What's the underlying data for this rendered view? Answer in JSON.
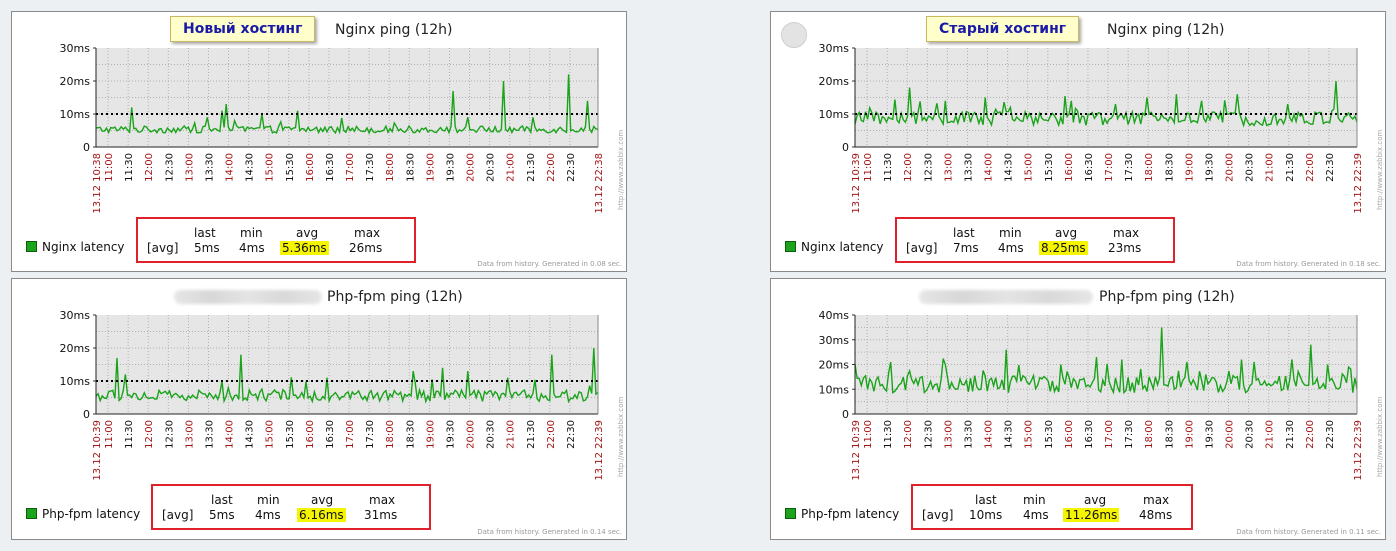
{
  "chart_data": [
    {
      "type": "line",
      "title": "Nginx ping (12h)",
      "badge": "Новый хостинг",
      "has_blurred_host": false,
      "ytick_labels": [
        "0",
        "10ms",
        "20ms",
        "30ms"
      ],
      "ylim": [
        0,
        30
      ],
      "y_unit": "ms",
      "threshold": 10,
      "x_start_label": "13.12 10:38",
      "x_end_label": "13.12 22:38",
      "xticks": [
        "11:00",
        "11:30",
        "12:00",
        "12:30",
        "13:00",
        "13:30",
        "14:00",
        "14:30",
        "15:00",
        "15:30",
        "16:00",
        "16:30",
        "17:00",
        "17:30",
        "18:00",
        "18:30",
        "19:00",
        "19:30",
        "20:00",
        "20:30",
        "21:00",
        "21:30",
        "22:00",
        "22:30"
      ],
      "series": [
        {
          "name": "Nginx latency",
          "color": "#1ba31b",
          "base": 5,
          "noise": 1.5,
          "spikes": [
            [
              0.07,
              12
            ],
            [
              0.22,
              9
            ],
            [
              0.25,
              11
            ],
            [
              0.26,
              13
            ],
            [
              0.33,
              10
            ],
            [
              0.4,
              11
            ],
            [
              0.71,
              17
            ],
            [
              0.74,
              9
            ],
            [
              0.81,
              20
            ],
            [
              0.87,
              9
            ],
            [
              0.94,
              22
            ],
            [
              0.98,
              14
            ]
          ],
          "stats": {
            "func": "[avg]",
            "last": "5ms",
            "min": "4ms",
            "avg": "5.36ms",
            "max": "26ms"
          }
        }
      ],
      "footnote": "Data from history. Generated in 0.08 sec.",
      "watermark": "http://www.zabbix.com"
    },
    {
      "type": "line",
      "title": "Nginx ping (12h)",
      "badge": "Старый хостинг",
      "has_blurred_host": false,
      "ytick_labels": [
        "0",
        "10ms",
        "20ms",
        "30ms"
      ],
      "ylim": [
        0,
        30
      ],
      "y_unit": "ms",
      "threshold": 10,
      "x_start_label": "13.12 10:39",
      "x_end_label": "13.12 22:39",
      "xticks": [
        "11:00",
        "11:30",
        "12:00",
        "12:30",
        "13:00",
        "13:30",
        "14:00",
        "14:30",
        "15:00",
        "15:30",
        "16:00",
        "16:30",
        "17:00",
        "17:30",
        "18:00",
        "18:30",
        "19:00",
        "19:30",
        "20:00",
        "20:30",
        "21:00",
        "21:30",
        "22:00",
        "22:30"
      ],
      "series": [
        {
          "name": "Nginx latency",
          "color": "#1ba31b",
          "base": 8,
          "noise": 3,
          "spikes": [
            [
              0.11,
              18
            ],
            [
              0.18,
              14
            ],
            [
              0.26,
              15
            ],
            [
              0.31,
              12
            ],
            [
              0.43,
              14
            ],
            [
              0.52,
              13
            ],
            [
              0.58,
              15
            ],
            [
              0.64,
              16
            ],
            [
              0.69,
              14
            ],
            [
              0.76,
              16
            ],
            [
              0.86,
              13
            ],
            [
              0.96,
              20
            ]
          ],
          "stats": {
            "func": "[avg]",
            "last": "7ms",
            "min": "4ms",
            "avg": "8.25ms",
            "max": "23ms"
          }
        }
      ],
      "footnote": "Data from history. Generated in 0.18 sec.",
      "watermark": "http://www.zabbix.com"
    },
    {
      "type": "line",
      "title": "Php-fpm ping (12h)",
      "badge": "",
      "has_blurred_host": true,
      "ytick_labels": [
        "0",
        "10ms",
        "20ms",
        "30ms"
      ],
      "ylim": [
        0,
        30
      ],
      "y_unit": "ms",
      "threshold": 10,
      "x_start_label": "13.12 10:39",
      "x_end_label": "13.12 22:39",
      "xticks": [
        "11:00",
        "11:30",
        "12:00",
        "12:30",
        "13:00",
        "13:30",
        "14:00",
        "14:30",
        "15:00",
        "15:30",
        "16:00",
        "16:30",
        "17:00",
        "17:30",
        "18:00",
        "18:30",
        "19:00",
        "19:30",
        "20:00",
        "20:30",
        "21:00",
        "21:30",
        "22:00",
        "22:30"
      ],
      "series": [
        {
          "name": "Php-fpm latency",
          "color": "#1ba31b",
          "base": 5,
          "noise": 2.5,
          "spikes": [
            [
              0.04,
              17
            ],
            [
              0.06,
              12
            ],
            [
              0.25,
              10
            ],
            [
              0.29,
              18
            ],
            [
              0.46,
              11
            ],
            [
              0.63,
              13
            ],
            [
              0.69,
              14
            ],
            [
              0.74,
              13
            ],
            [
              0.82,
              11
            ],
            [
              0.91,
              18
            ],
            [
              0.99,
              20
            ]
          ],
          "stats": {
            "func": "[avg]",
            "last": "5ms",
            "min": "4ms",
            "avg": "6.16ms",
            "max": "31ms"
          }
        }
      ],
      "footnote": "Data from history. Generated in 0.14 sec.",
      "watermark": "http://www.zabbix.com"
    },
    {
      "type": "line",
      "title": "Php-fpm ping (12h)",
      "badge": "",
      "has_blurred_host": true,
      "ytick_labels": [
        "0",
        "10ms",
        "20ms",
        "30ms",
        "40ms"
      ],
      "ylim": [
        0,
        40
      ],
      "y_unit": "ms",
      "threshold": null,
      "x_start_label": "13.12 10:39",
      "x_end_label": "13.12 22:39",
      "xticks": [
        "11:00",
        "11:30",
        "12:00",
        "12:30",
        "13:00",
        "13:30",
        "14:00",
        "14:30",
        "15:00",
        "15:30",
        "16:00",
        "16:30",
        "17:00",
        "17:30",
        "18:00",
        "18:30",
        "19:00",
        "19:30",
        "20:00",
        "20:30",
        "21:00",
        "21:30",
        "22:00",
        "22:30"
      ],
      "series": [
        {
          "name": "Php-fpm latency",
          "color": "#1ba31b",
          "base": 11,
          "noise": 5,
          "spikes": [
            [
              0.07,
              21
            ],
            [
              0.18,
              20
            ],
            [
              0.3,
              26
            ],
            [
              0.41,
              20
            ],
            [
              0.48,
              23
            ],
            [
              0.53,
              22
            ],
            [
              0.61,
              35
            ],
            [
              0.66,
              21
            ],
            [
              0.77,
              22
            ],
            [
              0.87,
              22
            ],
            [
              0.91,
              28
            ],
            [
              0.94,
              20
            ]
          ],
          "stats": {
            "func": "[avg]",
            "last": "10ms",
            "min": "4ms",
            "avg": "11.26ms",
            "max": "48ms"
          }
        }
      ],
      "footnote": "Data from history. Generated in 0.11 sec.",
      "watermark": "http://www.zabbix.com"
    }
  ]
}
